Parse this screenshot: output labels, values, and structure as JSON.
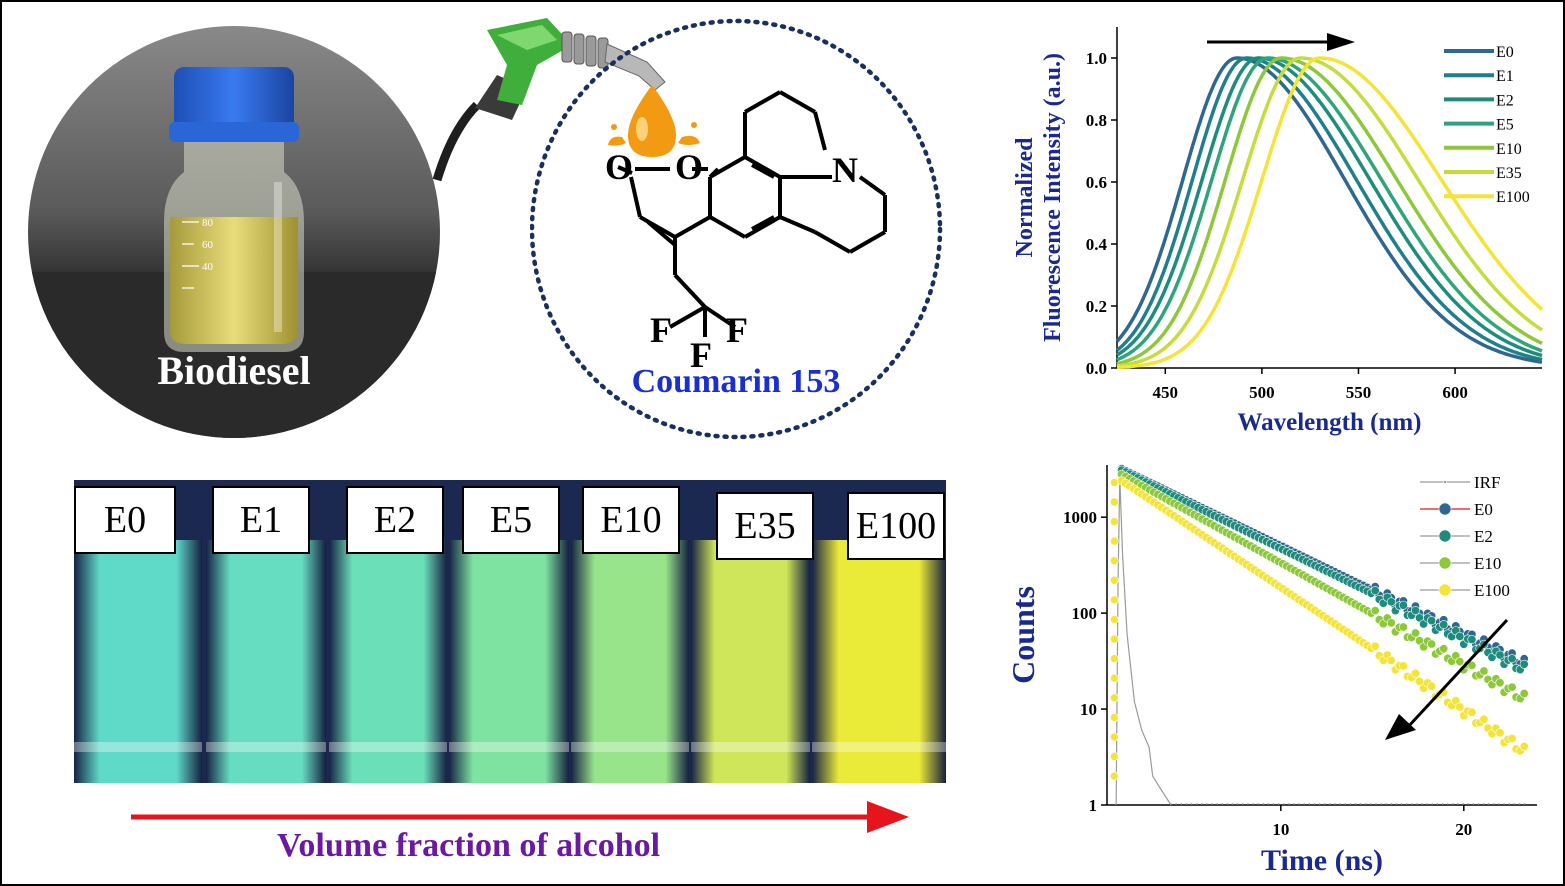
{
  "biodiesel": {
    "label": "Biodiesel",
    "cylinder_marks": [
      "80",
      "60",
      "40"
    ]
  },
  "molecule": {
    "name": "Coumarin 153",
    "atoms": [
      "O",
      "O",
      "N",
      "F",
      "F",
      "F"
    ]
  },
  "vials": {
    "labels": [
      "E0",
      "E1",
      "E2",
      "E5",
      "E10",
      "E35",
      "E100"
    ],
    "arrow_label": "Volume fraction of alcohol"
  },
  "colors": {
    "E0": "#2e6890",
    "E1": "#1f7f8a",
    "E2": "#1e8c7c",
    "E5": "#2fa47a",
    "E10": "#8cc83a",
    "E35": "#c4dd3c",
    "E100": "#f3e437",
    "IRF": "#9a9a9a",
    "molecule_name": "#1a2fd0",
    "axis_label": "#1a2a8c",
    "arrow_red": "#e8141c",
    "purple": "#6a1aa0",
    "dotted_circle": "#1a2f5e"
  },
  "chart_data": [
    {
      "type": "line",
      "title": "",
      "xlabel": "Wavelength (nm)",
      "ylabel": "Normalized Fluorescence Intensity (a.u.)",
      "ylabel_lines": [
        "Normalized",
        "Fluorescence Intensity (a.u.)"
      ],
      "xlim": [
        425,
        645
      ],
      "ylim": [
        0,
        1.1
      ],
      "xticks": [
        450,
        500,
        550,
        600
      ],
      "yticks": [
        0.0,
        0.2,
        0.4,
        0.6,
        0.8,
        1.0
      ],
      "ytick_labels": [
        "0.0",
        "0.2",
        "0.4",
        "0.6",
        "0.8",
        "1.0"
      ],
      "legend_position": "top-right",
      "series": [
        {
          "name": "E0",
          "peak_nm": 487,
          "width_left": 28,
          "width_right": 56
        },
        {
          "name": "E1",
          "peak_nm": 492,
          "width_left": 28,
          "width_right": 57
        },
        {
          "name": "E2",
          "peak_nm": 498,
          "width_left": 29,
          "width_right": 58
        },
        {
          "name": "E5",
          "peak_nm": 503,
          "width_left": 29,
          "width_right": 59
        },
        {
          "name": "E10",
          "peak_nm": 510,
          "width_left": 29,
          "width_right": 60
        },
        {
          "name": "E35",
          "peak_nm": 520,
          "width_left": 30,
          "width_right": 61
        },
        {
          "name": "E100",
          "peak_nm": 530,
          "width_left": 30,
          "width_right": 63
        }
      ]
    },
    {
      "type": "scatter",
      "title": "",
      "xlabel": "Time (ns)",
      "ylabel": "Counts",
      "xlim": [
        0.5,
        24
      ],
      "ylim": [
        1,
        3500
      ],
      "yscale": "log",
      "xticks": [
        10,
        20
      ],
      "yticks": [
        1,
        10,
        100,
        1000
      ],
      "ytick_labels": [
        "1",
        "10",
        "100",
        "1000"
      ],
      "legend_position": "top-right",
      "series": [
        {
          "name": "IRF",
          "peak_time_ns": 1.2,
          "peak_counts": 2600
        },
        {
          "name": "E0",
          "peak_time_ns": 1.3,
          "peak_counts": 3200,
          "counts_at_23ns": 32
        },
        {
          "name": "E2",
          "peak_time_ns": 1.3,
          "peak_counts": 3100,
          "counts_at_23ns": 28
        },
        {
          "name": "E10",
          "peak_time_ns": 1.3,
          "peak_counts": 2800,
          "counts_at_23ns": 14
        },
        {
          "name": "E100",
          "peak_time_ns": 1.3,
          "peak_counts": 2400,
          "counts_at_23ns": 4
        }
      ]
    }
  ]
}
